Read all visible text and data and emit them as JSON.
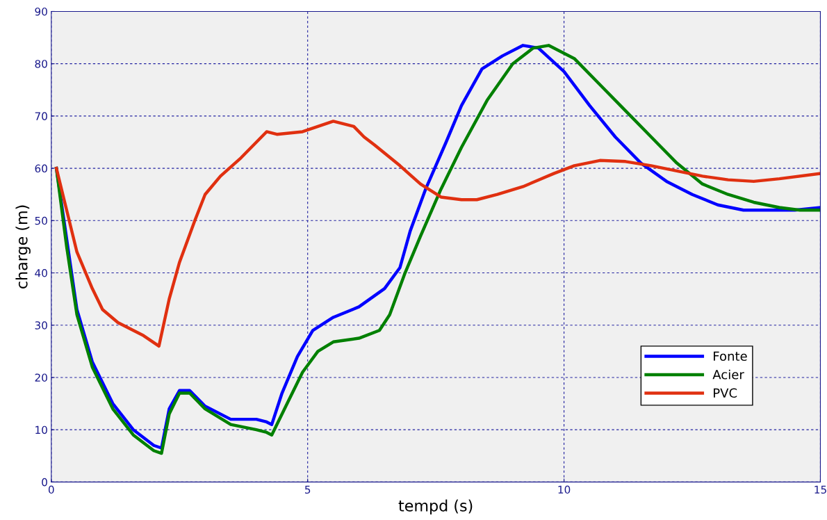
{
  "chart_data": {
    "type": "line",
    "xlabel": "tempd (s)",
    "ylabel": "charge (m)",
    "xlim": [
      0,
      15
    ],
    "ylim": [
      0,
      90
    ],
    "xticks": [
      0,
      5,
      10,
      15
    ],
    "yticks": [
      0,
      10,
      20,
      30,
      40,
      50,
      60,
      70,
      80,
      90
    ],
    "grid": true,
    "legend": "bottom right",
    "marker": "none",
    "line_style": "solid",
    "series": [
      {
        "name": "Fonte",
        "color": "#0000ff",
        "x": [
          0.1,
          0.5,
          0.8,
          1.2,
          1.6,
          2.0,
          2.15,
          2.3,
          2.5,
          2.7,
          3.0,
          3.5,
          4.0,
          4.2,
          4.3,
          4.5,
          4.8,
          5.1,
          5.5,
          6.0,
          6.5,
          6.8,
          7.0,
          7.3,
          7.7,
          8.0,
          8.4,
          8.8,
          9.2,
          9.5,
          10.0,
          10.5,
          11.0,
          11.5,
          12.0,
          12.5,
          13.0,
          13.5,
          14.0,
          14.5,
          15.0
        ],
        "values": [
          60,
          33,
          23,
          15,
          10,
          7,
          6.5,
          14,
          17.5,
          17.5,
          14.5,
          12,
          12,
          11.5,
          11,
          17,
          24,
          29,
          31.5,
          33.5,
          37,
          41,
          48,
          56,
          65,
          72,
          79,
          81.5,
          83.5,
          83,
          78.5,
          72,
          66,
          61,
          57.5,
          55,
          53,
          52,
          52,
          52,
          52.5
        ]
      },
      {
        "name": "Acier",
        "color": "#008000",
        "x": [
          0.1,
          0.3,
          0.5,
          0.8,
          1.2,
          1.6,
          2.0,
          2.15,
          2.3,
          2.5,
          2.7,
          3.0,
          3.5,
          4.0,
          4.2,
          4.3,
          4.6,
          4.9,
          5.2,
          5.5,
          6.0,
          6.4,
          6.6,
          6.9,
          7.2,
          7.6,
          8.0,
          8.5,
          9.0,
          9.4,
          9.7,
          10.2,
          10.7,
          11.2,
          11.7,
          12.2,
          12.7,
          13.2,
          13.7,
          14.2,
          14.6,
          15.0
        ],
        "values": [
          60,
          45,
          32,
          22,
          14,
          9,
          6,
          5.5,
          13,
          17,
          17,
          14,
          11,
          10,
          9.5,
          9,
          15,
          21,
          25,
          26.8,
          27.5,
          29,
          32,
          40,
          47,
          56,
          64,
          73,
          80,
          83,
          83.5,
          81,
          76,
          71,
          66,
          61,
          57,
          55,
          53.5,
          52.5,
          52,
          52
        ]
      },
      {
        "name": "PVC",
        "color": "#e03010",
        "x": [
          0.1,
          0.3,
          0.5,
          0.8,
          1.0,
          1.3,
          1.6,
          1.8,
          2.1,
          2.3,
          2.5,
          2.8,
          3.0,
          3.3,
          3.7,
          4.0,
          4.2,
          4.4,
          4.9,
          5.2,
          5.5,
          5.9,
          6.1,
          6.3,
          6.8,
          7.2,
          7.6,
          8.0,
          8.3,
          8.7,
          9.2,
          9.8,
          10.2,
          10.7,
          11.2,
          11.7,
          12.2,
          12.7,
          13.2,
          13.7,
          14.2,
          15.0
        ],
        "values": [
          60,
          52,
          44,
          37,
          33,
          30.5,
          29,
          28,
          26,
          35,
          42,
          50,
          55,
          58.5,
          62,
          65,
          67,
          66.5,
          67,
          68,
          69,
          68,
          66,
          64.5,
          60.5,
          57,
          54.5,
          54,
          54,
          55,
          56.5,
          59,
          60.5,
          61.5,
          61.3,
          60.5,
          59.5,
          58.5,
          57.8,
          57.5,
          58,
          59
        ]
      }
    ]
  }
}
